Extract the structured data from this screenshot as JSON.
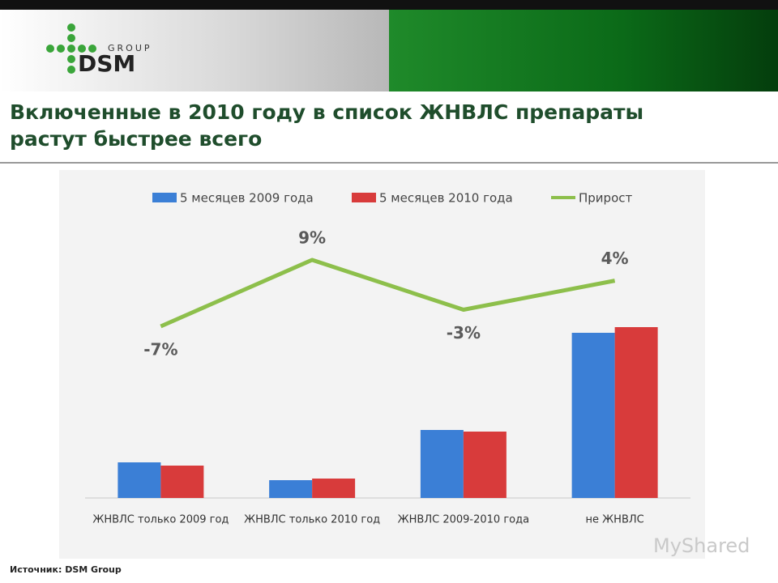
{
  "slide": {
    "logo_group": "GROUP",
    "logo_name": "DSM",
    "title_line1": "Включенные в 2010 году в список ЖНВЛС препараты",
    "title_line2": "растут быстрее всего",
    "source": "Источник: DSM Group",
    "watermark": "MyShared"
  },
  "chart_data": {
    "type": "bar",
    "categories": [
      "ЖНВЛС только 2009 год",
      "ЖНВЛС только 2010 год",
      "ЖНВЛС 2009-2010 года",
      "не ЖНВЛС"
    ],
    "series": [
      {
        "name": "5 месяцев 2009 года",
        "color": "#3b7fd6",
        "values": [
          44,
          22,
          84,
          204
        ]
      },
      {
        "name": "5 месяцев 2010 года",
        "color": "#d83b3b",
        "values": [
          40,
          24,
          82,
          211
        ]
      },
      {
        "name": "Прирост",
        "type": "line",
        "axis": "y2",
        "color": "#8dbf4b",
        "values": [
          -7,
          9,
          -3,
          4
        ],
        "value_labels": [
          "-7%",
          "9%",
          "-3%",
          "4%"
        ]
      }
    ]
  }
}
